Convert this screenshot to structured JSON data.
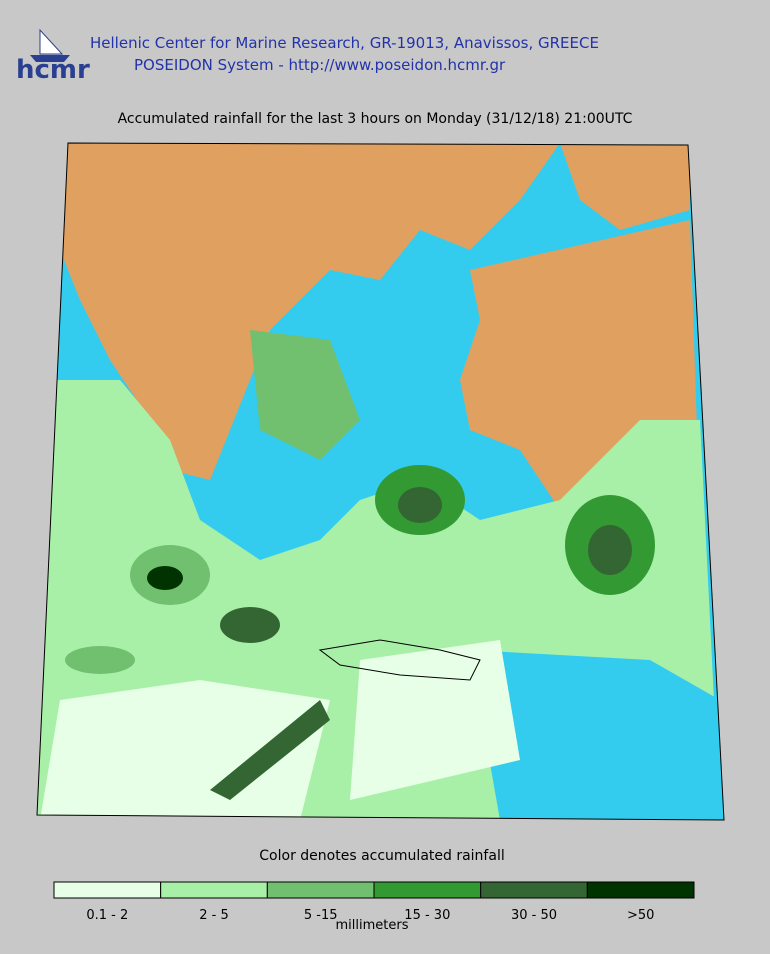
{
  "header": {
    "logo": "hcmr",
    "line1": "Hellenic Center for Marine Research, GR-19013, Anavissos, GREECE",
    "line2": "POSEIDON System - http://www.poseidon.hcmr.gr"
  },
  "title": "Accumulated rainfall for the last 3 hours on Monday (31/12/18) 21:00UTC",
  "legend": {
    "caption": "Color denotes accumulated rainfall",
    "unit": "millimeters",
    "items": [
      {
        "label": "0.1 - 2",
        "color": "#e6ffe6"
      },
      {
        "label": "2 - 5",
        "color": "#a8f0a8"
      },
      {
        "label": "5 -15",
        "color": "#70c070"
      },
      {
        "label": "15 - 30",
        "color": "#339933"
      },
      {
        "label": "30 - 50",
        "color": "#336633"
      },
      {
        "label": ">50",
        "color": "#003300"
      }
    ]
  }
}
